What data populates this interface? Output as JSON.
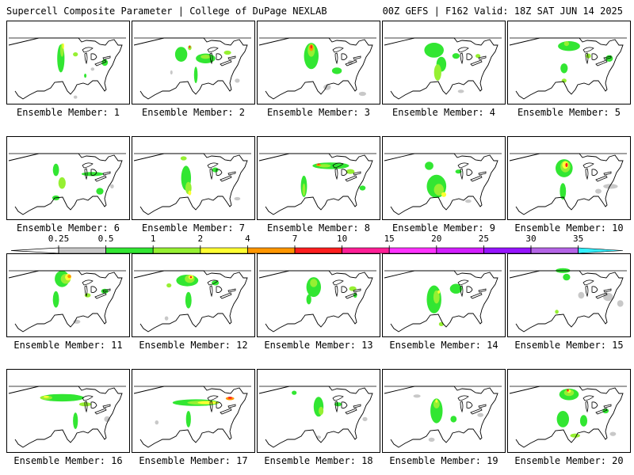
{
  "header": {
    "left_title": "Supercell Composite Parameter | College of DuPage NEXLAB",
    "right_title": "00Z GEFS | F162 Valid: 18Z SAT JUN 14 2025"
  },
  "legend": {
    "ticks": [
      "0.25",
      "0.5",
      "1",
      "2",
      "4",
      "7",
      "10",
      "15",
      "20",
      "25",
      "30",
      "35"
    ],
    "colors": [
      "#c8c8c8",
      "#32e632",
      "#96f032",
      "#ffff32",
      "#ff9600",
      "#ff1e1e",
      "#ff1e96",
      "#ff32ff",
      "#d21eff",
      "#9614ff",
      "#b464e6",
      "#32f0ff"
    ]
  },
  "members": [
    {
      "label": "Ensemble Member: 1",
      "features": [
        [
          0.44,
          0.45,
          0.06,
          0.34,
          "#32e632"
        ],
        [
          0.45,
          0.35,
          0.03,
          0.16,
          "#96f032"
        ],
        [
          0.46,
          0.3,
          0.015,
          0.07,
          "#ffff32"
        ],
        [
          0.8,
          0.5,
          0.05,
          0.08,
          "#32e632"
        ],
        [
          0.56,
          0.4,
          0.04,
          0.05,
          "#96f032"
        ],
        [
          0.56,
          0.92,
          0.03,
          0.04,
          "#c8c8c8"
        ],
        [
          0.64,
          0.66,
          0.02,
          0.05,
          "#32e632"
        ],
        [
          0.7,
          0.58,
          0.03,
          0.04,
          "#c8c8c8"
        ]
      ]
    },
    {
      "label": "Ensemble Member: 2",
      "features": [
        [
          0.4,
          0.4,
          0.1,
          0.18,
          "#32e632"
        ],
        [
          0.6,
          0.45,
          0.16,
          0.12,
          "#32e632"
        ],
        [
          0.6,
          0.43,
          0.08,
          0.05,
          "#96f032"
        ],
        [
          0.47,
          0.32,
          0.03,
          0.06,
          "#96f032"
        ],
        [
          0.47,
          0.31,
          0.012,
          0.03,
          "#ff1e1e"
        ],
        [
          0.52,
          0.65,
          0.03,
          0.2,
          "#32e632"
        ],
        [
          0.78,
          0.38,
          0.06,
          0.05,
          "#96f032"
        ],
        [
          0.86,
          0.72,
          0.04,
          0.05,
          "#c8c8c8"
        ],
        [
          0.32,
          0.62,
          0.02,
          0.05,
          "#c8c8c8"
        ]
      ]
    },
    {
      "label": "Ensemble Member: 3",
      "features": [
        [
          0.44,
          0.42,
          0.12,
          0.32,
          "#32e632"
        ],
        [
          0.44,
          0.35,
          0.06,
          0.16,
          "#96f032"
        ],
        [
          0.44,
          0.32,
          0.035,
          0.08,
          "#ff9600"
        ],
        [
          0.44,
          0.31,
          0.015,
          0.04,
          "#ff1e1e"
        ],
        [
          0.65,
          0.6,
          0.08,
          0.08,
          "#32e632"
        ],
        [
          0.57,
          0.8,
          0.06,
          0.07,
          "#c8c8c8"
        ],
        [
          0.76,
          0.5,
          0.04,
          0.06,
          "#c8c8c8"
        ],
        [
          0.86,
          0.88,
          0.06,
          0.05,
          "#c8c8c8"
        ]
      ]
    },
    {
      "label": "Ensemble Member: 4",
      "features": [
        [
          0.42,
          0.35,
          0.16,
          0.18,
          "#32e632"
        ],
        [
          0.48,
          0.52,
          0.08,
          0.18,
          "#32e632"
        ],
        [
          0.45,
          0.62,
          0.06,
          0.2,
          "#96f032"
        ],
        [
          0.6,
          0.42,
          0.06,
          0.07,
          "#32e632"
        ],
        [
          0.78,
          0.42,
          0.04,
          0.05,
          "#96f032"
        ],
        [
          0.64,
          0.85,
          0.05,
          0.04,
          "#c8c8c8"
        ]
      ]
    },
    {
      "label": "Ensemble Member: 5",
      "features": [
        [
          0.5,
          0.3,
          0.18,
          0.12,
          "#32e632"
        ],
        [
          0.48,
          0.27,
          0.04,
          0.06,
          "#96f032"
        ],
        [
          0.46,
          0.57,
          0.06,
          0.12,
          "#32e632"
        ],
        [
          0.66,
          0.42,
          0.04,
          0.06,
          "#96f032"
        ],
        [
          0.83,
          0.45,
          0.06,
          0.08,
          "#32e632"
        ],
        [
          0.46,
          0.72,
          0.04,
          0.05,
          "#96f032"
        ]
      ]
    },
    {
      "label": "Ensemble Member: 6",
      "features": [
        [
          0.4,
          0.4,
          0.05,
          0.15,
          "#32e632"
        ],
        [
          0.45,
          0.56,
          0.06,
          0.14,
          "#96f032"
        ],
        [
          0.7,
          0.45,
          0.18,
          0.05,
          "#32e632"
        ],
        [
          0.76,
          0.66,
          0.06,
          0.08,
          "#32e632"
        ],
        [
          0.4,
          0.74,
          0.06,
          0.06,
          "#32e632"
        ],
        [
          0.86,
          0.6,
          0.03,
          0.05,
          "#c8c8c8"
        ]
      ]
    },
    {
      "label": "Ensemble Member: 7",
      "features": [
        [
          0.44,
          0.5,
          0.08,
          0.3,
          "#32e632"
        ],
        [
          0.46,
          0.62,
          0.05,
          0.15,
          "#96f032"
        ],
        [
          0.47,
          0.68,
          0.025,
          0.06,
          "#ffff32"
        ],
        [
          0.42,
          0.26,
          0.05,
          0.05,
          "#96f032"
        ],
        [
          0.68,
          0.4,
          0.05,
          0.06,
          "#32e632"
        ],
        [
          0.86,
          0.75,
          0.05,
          0.04,
          "#c8c8c8"
        ]
      ]
    },
    {
      "label": "Ensemble Member: 8",
      "features": [
        [
          0.6,
          0.35,
          0.3,
          0.08,
          "#32e632"
        ],
        [
          0.55,
          0.35,
          0.1,
          0.04,
          "#96f032"
        ],
        [
          0.5,
          0.34,
          0.04,
          0.025,
          "#ff9600"
        ],
        [
          0.5,
          0.33,
          0.02,
          0.015,
          "#ff1e1e"
        ],
        [
          0.38,
          0.6,
          0.05,
          0.26,
          "#32e632"
        ],
        [
          0.38,
          0.64,
          0.025,
          0.15,
          "#96f032"
        ],
        [
          0.76,
          0.42,
          0.07,
          0.06,
          "#96f032"
        ],
        [
          0.86,
          0.62,
          0.05,
          0.06,
          "#32e632"
        ]
      ]
    },
    {
      "label": "Ensemble Member: 9",
      "features": [
        [
          0.44,
          0.6,
          0.16,
          0.28,
          "#32e632"
        ],
        [
          0.46,
          0.64,
          0.08,
          0.14,
          "#96f032"
        ],
        [
          0.5,
          0.7,
          0.04,
          0.06,
          "#ffff32"
        ],
        [
          0.38,
          0.35,
          0.07,
          0.1,
          "#32e632"
        ],
        [
          0.62,
          0.42,
          0.05,
          0.05,
          "#32e632"
        ],
        [
          0.7,
          0.78,
          0.05,
          0.04,
          "#c8c8c8"
        ]
      ]
    },
    {
      "label": "Ensemble Member: 10",
      "features": [
        [
          0.46,
          0.38,
          0.14,
          0.22,
          "#32e632"
        ],
        [
          0.47,
          0.36,
          0.08,
          0.14,
          "#96f032"
        ],
        [
          0.47,
          0.34,
          0.05,
          0.09,
          "#ffff32"
        ],
        [
          0.48,
          0.34,
          0.02,
          0.05,
          "#ff1e1e"
        ],
        [
          0.45,
          0.66,
          0.05,
          0.2,
          "#32e632"
        ],
        [
          0.84,
          0.6,
          0.12,
          0.06,
          "#c8c8c8"
        ],
        [
          0.74,
          0.66,
          0.05,
          0.06,
          "#c8c8c8"
        ]
      ]
    },
    {
      "label": "Ensemble Member: 11",
      "features": [
        [
          0.45,
          0.3,
          0.12,
          0.2,
          "#32e632"
        ],
        [
          0.48,
          0.3,
          0.08,
          0.12,
          "#96f032"
        ],
        [
          0.5,
          0.28,
          0.05,
          0.08,
          "#ffff32"
        ],
        [
          0.51,
          0.27,
          0.03,
          0.04,
          "#ff9600"
        ],
        [
          0.4,
          0.55,
          0.05,
          0.2,
          "#32e632"
        ],
        [
          0.8,
          0.45,
          0.06,
          0.06,
          "#32e632"
        ],
        [
          0.57,
          0.82,
          0.06,
          0.05,
          "#c8c8c8"
        ],
        [
          0.66,
          0.5,
          0.05,
          0.05,
          "#96f032"
        ]
      ]
    },
    {
      "label": "Ensemble Member: 12",
      "features": [
        [
          0.45,
          0.32,
          0.18,
          0.14,
          "#32e632"
        ],
        [
          0.47,
          0.3,
          0.08,
          0.1,
          "#96f032"
        ],
        [
          0.48,
          0.28,
          0.04,
          0.05,
          "#ffff32"
        ],
        [
          0.48,
          0.28,
          0.015,
          0.025,
          "#ff1e1e"
        ],
        [
          0.46,
          0.56,
          0.05,
          0.2,
          "#32e632"
        ],
        [
          0.68,
          0.35,
          0.06,
          0.06,
          "#32e632"
        ],
        [
          0.28,
          0.78,
          0.03,
          0.05,
          "#c8c8c8"
        ],
        [
          0.3,
          0.38,
          0.04,
          0.05,
          "#96f032"
        ]
      ]
    },
    {
      "label": "Ensemble Member: 13",
      "features": [
        [
          0.46,
          0.4,
          0.12,
          0.24,
          "#32e632"
        ],
        [
          0.46,
          0.35,
          0.06,
          0.1,
          "#96f032"
        ],
        [
          0.42,
          0.55,
          0.04,
          0.12,
          "#32e632"
        ],
        [
          0.78,
          0.42,
          0.06,
          0.06,
          "#96f032"
        ],
        [
          0.8,
          0.5,
          0.03,
          0.06,
          "#32e632"
        ]
      ]
    },
    {
      "label": "Ensemble Member: 14",
      "features": [
        [
          0.42,
          0.55,
          0.12,
          0.34,
          "#32e632"
        ],
        [
          0.44,
          0.52,
          0.05,
          0.16,
          "#96f032"
        ],
        [
          0.46,
          0.46,
          0.02,
          0.04,
          "#ffff32"
        ],
        [
          0.6,
          0.42,
          0.1,
          0.12,
          "#32e632"
        ],
        [
          0.48,
          0.85,
          0.04,
          0.05,
          "#96f032"
        ]
      ]
    },
    {
      "label": "Ensemble Member: 15",
      "features": [
        [
          0.45,
          0.2,
          0.12,
          0.06,
          "#32e632"
        ],
        [
          0.48,
          0.28,
          0.06,
          0.08,
          "#32e632"
        ],
        [
          0.82,
          0.52,
          0.08,
          0.1,
          "#c8c8c8"
        ],
        [
          0.6,
          0.5,
          0.05,
          0.08,
          "#c8c8c8"
        ],
        [
          0.4,
          0.7,
          0.03,
          0.05,
          "#96f032"
        ],
        [
          0.92,
          0.6,
          0.05,
          0.08,
          "#c8c8c8"
        ]
      ]
    },
    {
      "label": "Ensemble Member: 16",
      "features": [
        [
          0.45,
          0.34,
          0.36,
          0.09,
          "#32e632"
        ],
        [
          0.32,
          0.34,
          0.1,
          0.05,
          "#96f032"
        ],
        [
          0.32,
          0.33,
          0.045,
          0.025,
          "#ffff32"
        ],
        [
          0.56,
          0.62,
          0.04,
          0.2,
          "#32e632"
        ],
        [
          0.64,
          0.42,
          0.1,
          0.05,
          "#96f032"
        ],
        [
          0.82,
          0.6,
          0.05,
          0.07,
          "#c8c8c8"
        ]
      ]
    },
    {
      "label": "Ensemble Member: 17",
      "features": [
        [
          0.52,
          0.4,
          0.38,
          0.08,
          "#32e632"
        ],
        [
          0.58,
          0.4,
          0.26,
          0.05,
          "#96f032"
        ],
        [
          0.62,
          0.4,
          0.17,
          0.035,
          "#ffff32"
        ],
        [
          0.8,
          0.35,
          0.07,
          0.04,
          "#ff9600"
        ],
        [
          0.8,
          0.34,
          0.035,
          0.025,
          "#ff1e1e"
        ],
        [
          0.46,
          0.6,
          0.04,
          0.2,
          "#32e632"
        ],
        [
          0.2,
          0.64,
          0.03,
          0.05,
          "#c8c8c8"
        ]
      ]
    },
    {
      "label": "Ensemble Member: 18",
      "features": [
        [
          0.5,
          0.45,
          0.08,
          0.24,
          "#32e632"
        ],
        [
          0.52,
          0.5,
          0.04,
          0.1,
          "#96f032"
        ],
        [
          0.3,
          0.28,
          0.04,
          0.05,
          "#32e632"
        ],
        [
          0.66,
          0.42,
          0.06,
          0.05,
          "#32e632"
        ],
        [
          0.88,
          0.6,
          0.04,
          0.05,
          "#c8c8c8"
        ],
        [
          0.5,
          0.82,
          0.04,
          0.04,
          "#c8c8c8"
        ]
      ]
    },
    {
      "label": "Ensemble Member: 19",
      "features": [
        [
          0.44,
          0.5,
          0.1,
          0.3,
          "#32e632"
        ],
        [
          0.44,
          0.42,
          0.05,
          0.1,
          "#96f032"
        ],
        [
          0.44,
          0.38,
          0.02,
          0.04,
          "#ffff32"
        ],
        [
          0.58,
          0.6,
          0.05,
          0.08,
          "#32e632"
        ],
        [
          0.28,
          0.32,
          0.06,
          0.04,
          "#c8c8c8"
        ],
        [
          0.8,
          0.55,
          0.05,
          0.05,
          "#c8c8c8"
        ],
        [
          0.4,
          0.85,
          0.05,
          0.05,
          "#c8c8c8"
        ]
      ]
    },
    {
      "label": "Ensemble Member: 20",
      "features": [
        [
          0.5,
          0.3,
          0.16,
          0.14,
          "#32e632"
        ],
        [
          0.5,
          0.28,
          0.08,
          0.08,
          "#96f032"
        ],
        [
          0.5,
          0.26,
          0.03,
          0.04,
          "#ffff32"
        ],
        [
          0.49,
          0.25,
          0.015,
          0.03,
          "#ff1e1e"
        ],
        [
          0.45,
          0.6,
          0.1,
          0.2,
          "#32e632"
        ],
        [
          0.62,
          0.62,
          0.06,
          0.14,
          "#32e632"
        ],
        [
          0.55,
          0.8,
          0.08,
          0.05,
          "#96f032"
        ],
        [
          0.8,
          0.5,
          0.05,
          0.06,
          "#32e632"
        ],
        [
          0.86,
          0.78,
          0.05,
          0.05,
          "#c8c8c8"
        ]
      ]
    }
  ]
}
